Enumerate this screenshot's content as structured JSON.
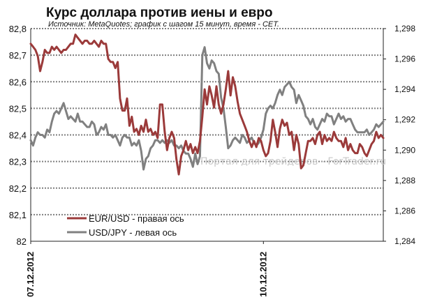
{
  "chart_data": {
    "type": "line",
    "title": "Курс доллара против иены и евро",
    "subtitle": "Источник: MetaQuotes; график с шагом 15 минут, время - CET.",
    "watermark": "Портал для трейдеров - ForTrader.ru",
    "left_axis": {
      "min": 82.0,
      "max": 82.8,
      "ticks": [
        82.8,
        82.7,
        82.6,
        82.5,
        82.4,
        82.3,
        82.2,
        82.1,
        82.0
      ],
      "tick_labels": [
        "82,8",
        "82,7",
        "82,6",
        "82,5",
        "82,4",
        "82,3",
        "82,2",
        "82,1",
        "82"
      ]
    },
    "right_axis": {
      "min": 1.284,
      "max": 1.298,
      "ticks": [
        1.298,
        1.296,
        1.294,
        1.292,
        1.29,
        1.288,
        1.286,
        1.284
      ],
      "tick_labels": [
        "1,298",
        "1,296",
        "1,294",
        "1,292",
        "1,290",
        "1,288",
        "1,286",
        "1,284"
      ]
    },
    "x_labels": [
      {
        "text": "07.12.2012",
        "index": 0
      },
      {
        "text": "10.12.2012",
        "index": 99
      }
    ],
    "grid": "horizontal dotted",
    "legend_position": "bottom-left",
    "series": [
      {
        "name": "EUR/USD - правая ось",
        "axis": "right",
        "color": "#9b3a3a",
        "values": [
          1.297,
          1.2968,
          1.2966,
          1.2962,
          1.2952,
          1.2958,
          1.2966,
          1.2964,
          1.2964,
          1.2968,
          1.2966,
          1.2968,
          1.2966,
          1.2964,
          1.2966,
          1.2966,
          1.2968,
          1.297,
          1.297,
          1.2976,
          1.2974,
          1.2972,
          1.297,
          1.2972,
          1.2972,
          1.297,
          1.297,
          1.2972,
          1.297,
          1.2968,
          1.2972,
          1.297,
          1.297,
          1.296,
          1.2958,
          1.2958,
          1.2954,
          1.2958,
          1.2934,
          1.2926,
          1.2926,
          1.2934,
          1.2916,
          1.2922,
          1.2912,
          1.2914,
          1.291,
          1.2916,
          1.2912,
          1.292,
          1.2912,
          1.2914,
          1.291,
          1.2912,
          1.2908,
          1.293,
          1.293,
          1.2912,
          1.29,
          1.2908,
          1.2912,
          1.2908,
          1.2894,
          1.2884,
          1.2896,
          1.29,
          1.2906,
          1.29,
          1.2904,
          1.2898,
          1.2902,
          1.2898,
          1.2906,
          1.2922,
          1.294,
          1.293,
          1.2942,
          1.2936,
          1.2928,
          1.2942,
          1.293,
          1.2924,
          1.293,
          1.294,
          1.2952,
          1.2936,
          1.2948,
          1.2942,
          1.2932,
          1.2924,
          1.292,
          1.2916,
          1.2912,
          1.2906,
          1.2902,
          1.2906,
          1.2902,
          1.2908,
          1.2906,
          1.29,
          1.2896,
          1.2898,
          1.2906,
          1.292,
          1.2912,
          1.2902,
          1.2914,
          1.292,
          1.2916,
          1.2918,
          1.291,
          1.2912,
          1.29,
          1.291,
          1.2904,
          1.2888,
          1.289,
          1.2898,
          1.2906,
          1.2906,
          1.2908,
          1.2904,
          1.291,
          1.2912,
          1.2904,
          1.291,
          1.2906,
          1.2908,
          1.2906,
          1.2912,
          1.2908,
          1.2906,
          1.2906,
          1.2902,
          1.2908,
          1.29,
          1.2904,
          1.29,
          1.2898,
          1.2898,
          1.2904,
          1.2902,
          1.2898,
          1.2896,
          1.29,
          1.2904,
          1.2906,
          1.2912,
          1.2908,
          1.291,
          1.2908
        ]
      },
      {
        "name": "USD/JPY - левая ось",
        "axis": "left",
        "color": "#808080",
        "values": [
          82.38,
          82.36,
          82.39,
          82.41,
          82.4,
          82.4,
          82.39,
          82.42,
          82.41,
          82.45,
          82.48,
          82.49,
          82.48,
          82.5,
          82.52,
          82.49,
          82.46,
          82.47,
          82.46,
          82.45,
          82.48,
          82.45,
          82.45,
          82.44,
          82.43,
          82.43,
          82.45,
          82.44,
          82.4,
          82.41,
          82.43,
          82.42,
          82.44,
          82.4,
          82.4,
          82.39,
          82.4,
          82.38,
          82.36,
          82.39,
          82.4,
          82.39,
          82.39,
          82.36,
          82.37,
          82.36,
          82.38,
          82.34,
          82.27,
          82.31,
          82.32,
          82.35,
          82.36,
          82.38,
          82.38,
          82.37,
          82.38,
          82.37,
          82.38,
          82.37,
          82.38,
          82.36,
          82.36,
          82.35,
          82.36,
          82.34,
          82.33,
          82.33,
          82.31,
          82.28,
          82.33,
          82.29,
          82.32,
          82.7,
          82.73,
          82.67,
          82.65,
          82.68,
          82.67,
          82.64,
          82.63,
          82.54,
          82.5,
          82.43,
          82.35,
          82.36,
          82.38,
          82.39,
          82.38,
          82.37,
          82.4,
          82.39,
          82.37,
          82.38,
          82.39,
          82.37,
          82.36,
          82.37,
          82.39,
          82.42,
          82.48,
          82.5,
          82.51,
          82.5,
          82.52,
          82.55,
          82.57,
          82.55,
          82.58,
          82.59,
          82.6,
          82.58,
          82.57,
          82.52,
          82.55,
          82.53,
          82.51,
          82.47,
          82.46,
          82.44,
          82.46,
          82.43,
          82.42,
          82.44,
          82.46,
          82.45,
          82.48,
          82.47,
          82.47,
          82.44,
          82.46,
          82.48,
          82.46,
          82.47,
          82.45,
          82.46,
          82.46,
          82.44,
          82.42,
          82.41,
          82.41,
          82.41,
          82.41,
          82.42,
          82.4,
          82.41,
          82.42,
          82.44,
          82.43,
          82.44,
          82.45
        ]
      }
    ]
  }
}
